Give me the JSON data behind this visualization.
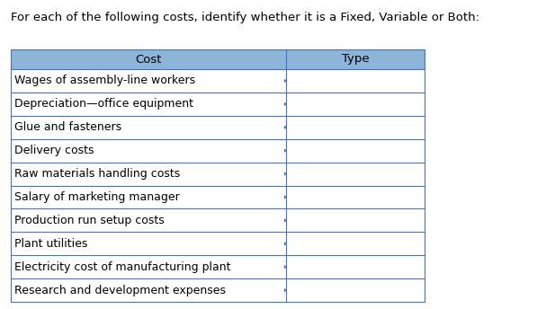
{
  "title": "For each of the following costs, identify whether it is a Fixed, Variable or Both:",
  "col_headers": [
    "Cost",
    "Type"
  ],
  "rows": [
    "Wages of assembly-line workers",
    "Depreciation—office equipment",
    "Glue and fasteners",
    "Delivery costs",
    "Raw materials handling costs",
    "Salary of marketing manager",
    "Production run setup costs",
    "Plant utilities",
    "Electricity cost of manufacturing plant",
    "Research and development expenses"
  ],
  "header_bg": "#8DB4D9",
  "border_color": "#4472C4",
  "header_text_color": "#000000",
  "row_text_color": "#000000",
  "title_color": "#000000",
  "title_fontsize": 9.5,
  "header_fontsize": 9.5,
  "row_fontsize": 9.0,
  "bg_color": "#FFFFFF",
  "fig_width": 5.97,
  "fig_height": 3.44,
  "dpi": 100
}
